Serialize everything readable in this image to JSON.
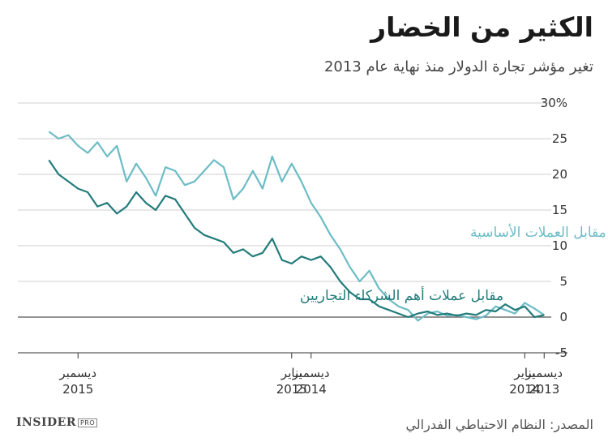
{
  "header": {
    "title": "الكثير من الخضار",
    "subtitle": "تغير مؤشر تجارة الدولار منذ نهاية عام 2013"
  },
  "footer": {
    "source": "المصدر: النظام الاحتياطي الفدرالي",
    "brand": "INSIDER",
    "brand_badge": "PRO"
  },
  "colors": {
    "major_currencies": "#6cbcc6",
    "trade_partners": "#237b7b",
    "grid": "#cfcfcf",
    "axis": "#333333"
  },
  "chart_data": {
    "type": "line",
    "x_axis": "reversed",
    "ylim": [
      -5,
      30
    ],
    "yticks": [
      {
        "value": 30,
        "label": "30%"
      },
      {
        "value": 25,
        "label": "25"
      },
      {
        "value": 20,
        "label": "20"
      },
      {
        "value": 15,
        "label": "15"
      },
      {
        "value": 10,
        "label": "10"
      },
      {
        "value": 5,
        "label": "5"
      },
      {
        "value": 0,
        "label": "0"
      },
      {
        "value": -5,
        "label": "-5"
      }
    ],
    "xticks": [
      {
        "x": 0,
        "month": "ديسمبر",
        "year": "2013"
      },
      {
        "x": 1,
        "month": "يناير",
        "year": "2014"
      },
      {
        "x": 12,
        "month": "ديسمبر",
        "year": "2014"
      },
      {
        "x": 13,
        "month": "يناير",
        "year": "2015"
      },
      {
        "x": 24,
        "month": "ديسمبر",
        "year": "2015"
      }
    ],
    "xlim": [
      -1.2,
      27.1
    ],
    "series": [
      {
        "name": "مقابل العملات الأساسية",
        "x": [
          0,
          0.5,
          1,
          1.5,
          2,
          2.5,
          3,
          3.5,
          4,
          4.5,
          5,
          5.5,
          6,
          6.5,
          7,
          7.5,
          8,
          8.5,
          9,
          9.5,
          10,
          10.5,
          11,
          11.5,
          12,
          12.5,
          13,
          13.5,
          14,
          14.5,
          15,
          15.5,
          16,
          16.5,
          17,
          17.5,
          18,
          18.5,
          19,
          19.5,
          20,
          20.5,
          21,
          21.5,
          22,
          22.5,
          23,
          23.5,
          24,
          24.5,
          25,
          25.5
        ],
        "values": [
          0.3,
          1.2,
          2.0,
          0.5,
          1.0,
          1.5,
          0.2,
          -0.3,
          0.0,
          0.3,
          0.2,
          0.8,
          0.5,
          -0.5,
          1.0,
          1.5,
          2.5,
          4.0,
          6.5,
          5.0,
          7.0,
          9.5,
          11.5,
          14.0,
          16.0,
          19.0,
          21.5,
          19.0,
          22.5,
          18.0,
          20.5,
          18.0,
          16.5,
          21.0,
          22.0,
          20.5,
          19.0,
          18.5,
          20.5,
          21.0,
          17.0,
          19.5,
          21.5,
          19.0,
          24.0,
          22.5,
          24.5,
          23.0,
          24.0,
          25.5,
          25.0,
          26.0
        ]
      },
      {
        "name": "مقابل عملات أهم الشركاء التجاريين",
        "x": [
          0,
          0.5,
          1,
          1.5,
          2,
          2.5,
          3,
          3.5,
          4,
          4.5,
          5,
          5.5,
          6,
          6.5,
          7,
          7.5,
          8,
          8.5,
          9,
          9.5,
          10,
          10.5,
          11,
          11.5,
          12,
          12.5,
          13,
          13.5,
          14,
          14.5,
          15,
          15.5,
          16,
          16.5,
          17,
          17.5,
          18,
          18.5,
          19,
          19.5,
          20,
          20.5,
          21,
          21.5,
          22,
          22.5,
          23,
          23.5,
          24,
          24.5,
          25,
          25.5
        ],
        "values": [
          0.3,
          0.0,
          1.5,
          1.0,
          1.8,
          0.8,
          1.0,
          0.3,
          0.5,
          0.2,
          0.5,
          0.3,
          0.8,
          0.5,
          0.0,
          0.5,
          1.0,
          1.5,
          2.5,
          2.5,
          3.5,
          5.0,
          7.0,
          8.5,
          8.0,
          8.5,
          7.5,
          8.0,
          11.0,
          9.0,
          8.5,
          9.5,
          9.0,
          10.5,
          11.0,
          11.5,
          12.5,
          14.5,
          16.5,
          17.0,
          15.0,
          16.0,
          17.5,
          15.5,
          14.5,
          16.0,
          15.5,
          17.5,
          18.0,
          19.0,
          20.0,
          22.0
        ]
      }
    ]
  }
}
